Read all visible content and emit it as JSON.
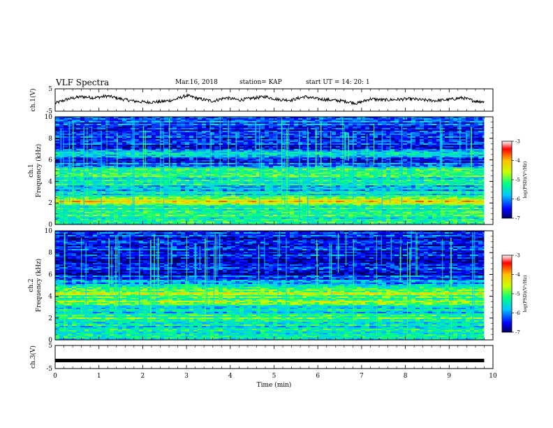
{
  "header": {
    "title": "VLF Spectra",
    "date": "Mar.16, 2018",
    "station": "station= KAP",
    "start": "start  UT =   14: 20: 1"
  },
  "chart_data": [
    {
      "type": "line",
      "panel": "ch1-voltage",
      "ylabel": "ch.1(V)",
      "ylim": [
        -5,
        5
      ],
      "yticks": [
        "5",
        "-5"
      ],
      "xlim": [
        0,
        10
      ],
      "x": [
        0.0,
        0.3,
        0.6,
        0.9,
        1.2,
        1.5,
        1.8,
        2.1,
        2.4,
        2.7,
        3.0,
        3.3,
        3.6,
        3.9,
        4.2,
        4.5,
        4.8,
        5.1,
        5.4,
        5.7,
        6.0,
        6.3,
        6.6,
        6.9,
        7.2,
        7.5,
        7.8,
        8.1,
        8.4,
        8.7,
        9.0,
        9.3,
        9.6,
        9.8
      ],
      "y": [
        -1.5,
        0.5,
        1.5,
        1.0,
        1.8,
        0.5,
        -0.5,
        -1.0,
        -0.8,
        0.0,
        2.0,
        0.5,
        -0.5,
        1.0,
        0.0,
        0.8,
        1.5,
        0.2,
        0.0,
        1.5,
        0.5,
        0.0,
        -0.5,
        -1.5,
        0.5,
        0.0,
        0.2,
        0.5,
        0.0,
        -0.3,
        0.2,
        1.0,
        -0.5,
        -0.8
      ],
      "color": "#000000"
    },
    {
      "type": "heatmap",
      "panel": "ch1-spectrogram",
      "ylabel": "ch.1 Frequency (kHz)",
      "ylim": [
        0,
        10
      ],
      "yticks": [
        "0",
        "2",
        "4",
        "6",
        "8",
        "10"
      ],
      "xlim": [
        0,
        10
      ],
      "colorbar": {
        "label": "log(PSD)(V²/Hz)",
        "range": [
          -7,
          -3
        ],
        "ticks": [
          "-3",
          "-4",
          "-5",
          "-6",
          "-7"
        ]
      },
      "profile_log_psd": [
        {
          "f": 0.0,
          "v": -5.6
        },
        {
          "f": 0.3,
          "v": -5.0
        },
        {
          "f": 0.6,
          "v": -5.3
        },
        {
          "f": 1.0,
          "v": -5.0
        },
        {
          "f": 1.5,
          "v": -5.4
        },
        {
          "f": 2.0,
          "v": -4.7
        },
        {
          "f": 2.2,
          "v": -3.9
        },
        {
          "f": 2.5,
          "v": -5.0
        },
        {
          "f": 3.0,
          "v": -5.7
        },
        {
          "f": 3.5,
          "v": -6.0
        },
        {
          "f": 3.8,
          "v": -5.2
        },
        {
          "f": 4.2,
          "v": -5.6
        },
        {
          "f": 4.6,
          "v": -5.1
        },
        {
          "f": 5.0,
          "v": -5.0
        },
        {
          "f": 5.5,
          "v": -6.0
        },
        {
          "f": 6.0,
          "v": -6.5
        },
        {
          "f": 6.6,
          "v": -5.2
        },
        {
          "f": 7.0,
          "v": -6.6
        },
        {
          "f": 8.0,
          "v": -6.4
        },
        {
          "f": 9.0,
          "v": -6.6
        },
        {
          "f": 9.5,
          "v": -6.0
        },
        {
          "f": 10.0,
          "v": -6.2
        }
      ]
    },
    {
      "type": "heatmap",
      "panel": "ch2-spectrogram",
      "ylabel": "ch.2 Frequency (kHz)",
      "ylim": [
        0,
        10
      ],
      "yticks": [
        "0",
        "2",
        "4",
        "6",
        "8",
        "10"
      ],
      "xlim": [
        0,
        10
      ],
      "colorbar": {
        "label": "log(PSD)(V²/Hz)",
        "range": [
          -7,
          -3
        ],
        "ticks": [
          "-3",
          "-4",
          "-5",
          "-6",
          "-7"
        ]
      },
      "profile_log_psd": [
        {
          "f": 0.0,
          "v": -5.5
        },
        {
          "f": 0.5,
          "v": -5.2
        },
        {
          "f": 1.0,
          "v": -5.6
        },
        {
          "f": 1.5,
          "v": -5.4
        },
        {
          "f": 2.0,
          "v": -5.0
        },
        {
          "f": 2.5,
          "v": -5.8
        },
        {
          "f": 3.0,
          "v": -5.6
        },
        {
          "f": 3.5,
          "v": -4.8
        },
        {
          "f": 3.8,
          "v": -5.3
        },
        {
          "f": 4.2,
          "v": -4.6
        },
        {
          "f": 4.6,
          "v": -5.0
        },
        {
          "f": 5.0,
          "v": -5.8
        },
        {
          "f": 5.5,
          "v": -6.2
        },
        {
          "f": 6.0,
          "v": -6.5
        },
        {
          "f": 7.0,
          "v": -6.6
        },
        {
          "f": 8.0,
          "v": -6.5
        },
        {
          "f": 9.0,
          "v": -6.6
        },
        {
          "f": 10.0,
          "v": -6.3
        }
      ]
    },
    {
      "type": "line",
      "panel": "ch3-voltage",
      "ylabel": "ch.3(V)",
      "ylim": [
        -5,
        5
      ],
      "yticks": [
        "5",
        "-5"
      ],
      "xlim": [
        0,
        10
      ],
      "x": [
        0.0,
        9.8
      ],
      "y": [
        -1.5,
        -1.5
      ],
      "color": "#000000",
      "xlabel": "Time (min)",
      "xticks": [
        "0",
        "1",
        "2",
        "3",
        "4",
        "5",
        "6",
        "7",
        "8",
        "9",
        "10"
      ]
    }
  ]
}
